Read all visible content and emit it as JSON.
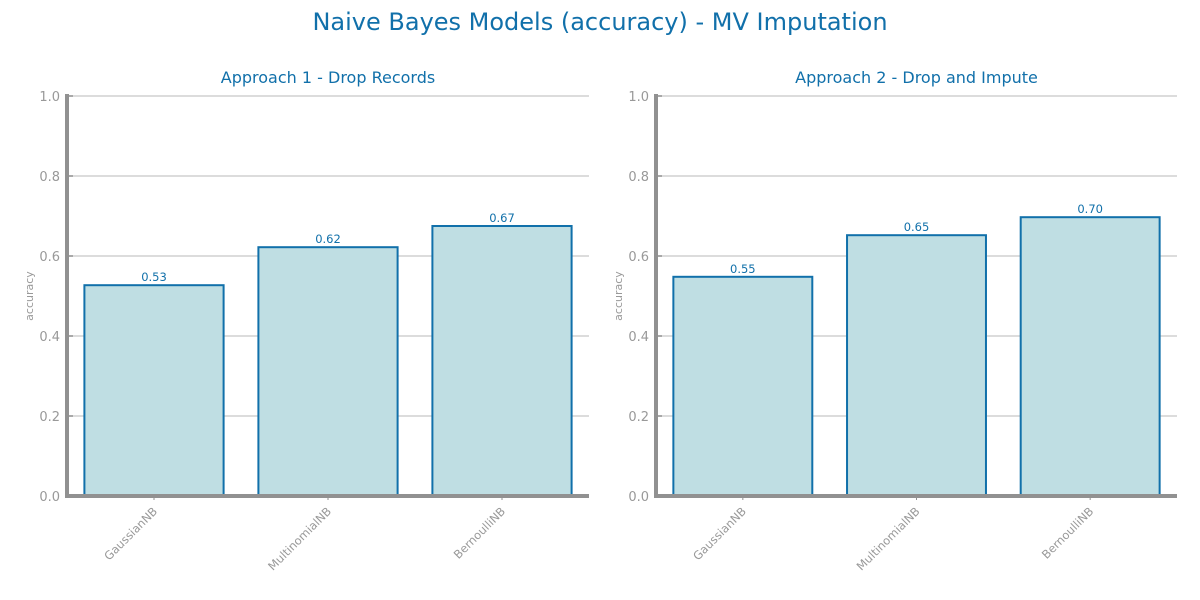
{
  "figure": {
    "suptitle": "Naive Bayes Models (accuracy) - MV Imputation",
    "colors": {
      "title": "#1170aa",
      "bar_fill": "#bfdee3",
      "bar_edge": "#1170aa",
      "value_label": "#1170aa",
      "axis": "#919191",
      "grid": "#c8c8c8",
      "tick_label": "#999999"
    }
  },
  "chart_data": [
    {
      "type": "bar",
      "title": "Approach 1 - Drop Records",
      "xlabel": "",
      "ylabel": "accuracy",
      "categories": [
        "GaussianNB",
        "MultinomialNB",
        "BernoulliNB"
      ],
      "values": [
        0.527,
        0.622,
        0.675
      ],
      "value_labels": [
        "0.53",
        "0.62",
        "0.67"
      ],
      "ylim": [
        0.0,
        1.0
      ],
      "yticks": [
        "0.0",
        "0.2",
        "0.4",
        "0.6",
        "0.8",
        "1.0"
      ],
      "grid": true
    },
    {
      "type": "bar",
      "title": "Approach 2 - Drop and Impute",
      "xlabel": "",
      "ylabel": "accuracy",
      "categories": [
        "GaussianNB",
        "MultinomialNB",
        "BernoulliNB"
      ],
      "values": [
        0.548,
        0.652,
        0.697
      ],
      "value_labels": [
        "0.55",
        "0.65",
        "0.70"
      ],
      "ylim": [
        0.0,
        1.0
      ],
      "yticks": [
        "0.0",
        "0.2",
        "0.4",
        "0.6",
        "0.8",
        "1.0"
      ],
      "grid": true
    }
  ]
}
